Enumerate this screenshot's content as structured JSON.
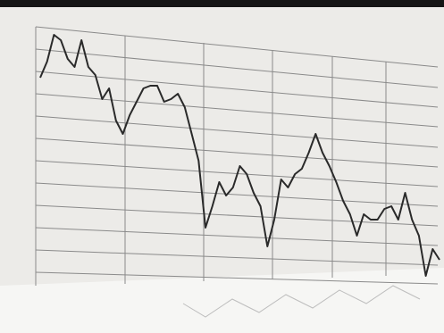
{
  "chart_data": {
    "type": "line",
    "color": "#2a2a2a",
    "values": [
      81,
      87,
      97,
      95,
      88,
      85,
      95,
      85,
      82,
      73,
      77,
      65,
      60,
      67,
      72,
      77,
      78,
      78,
      72,
      73,
      75,
      70,
      60,
      50,
      25,
      33,
      42,
      37,
      40,
      48,
      45,
      38,
      33,
      18,
      28,
      43,
      40,
      45,
      47,
      53,
      60,
      53,
      48,
      42,
      35,
      30,
      22,
      30,
      28,
      28,
      32,
      33,
      28,
      38,
      28,
      22,
      7,
      17,
      13
    ],
    "ylim": [
      0,
      100
    ]
  }
}
